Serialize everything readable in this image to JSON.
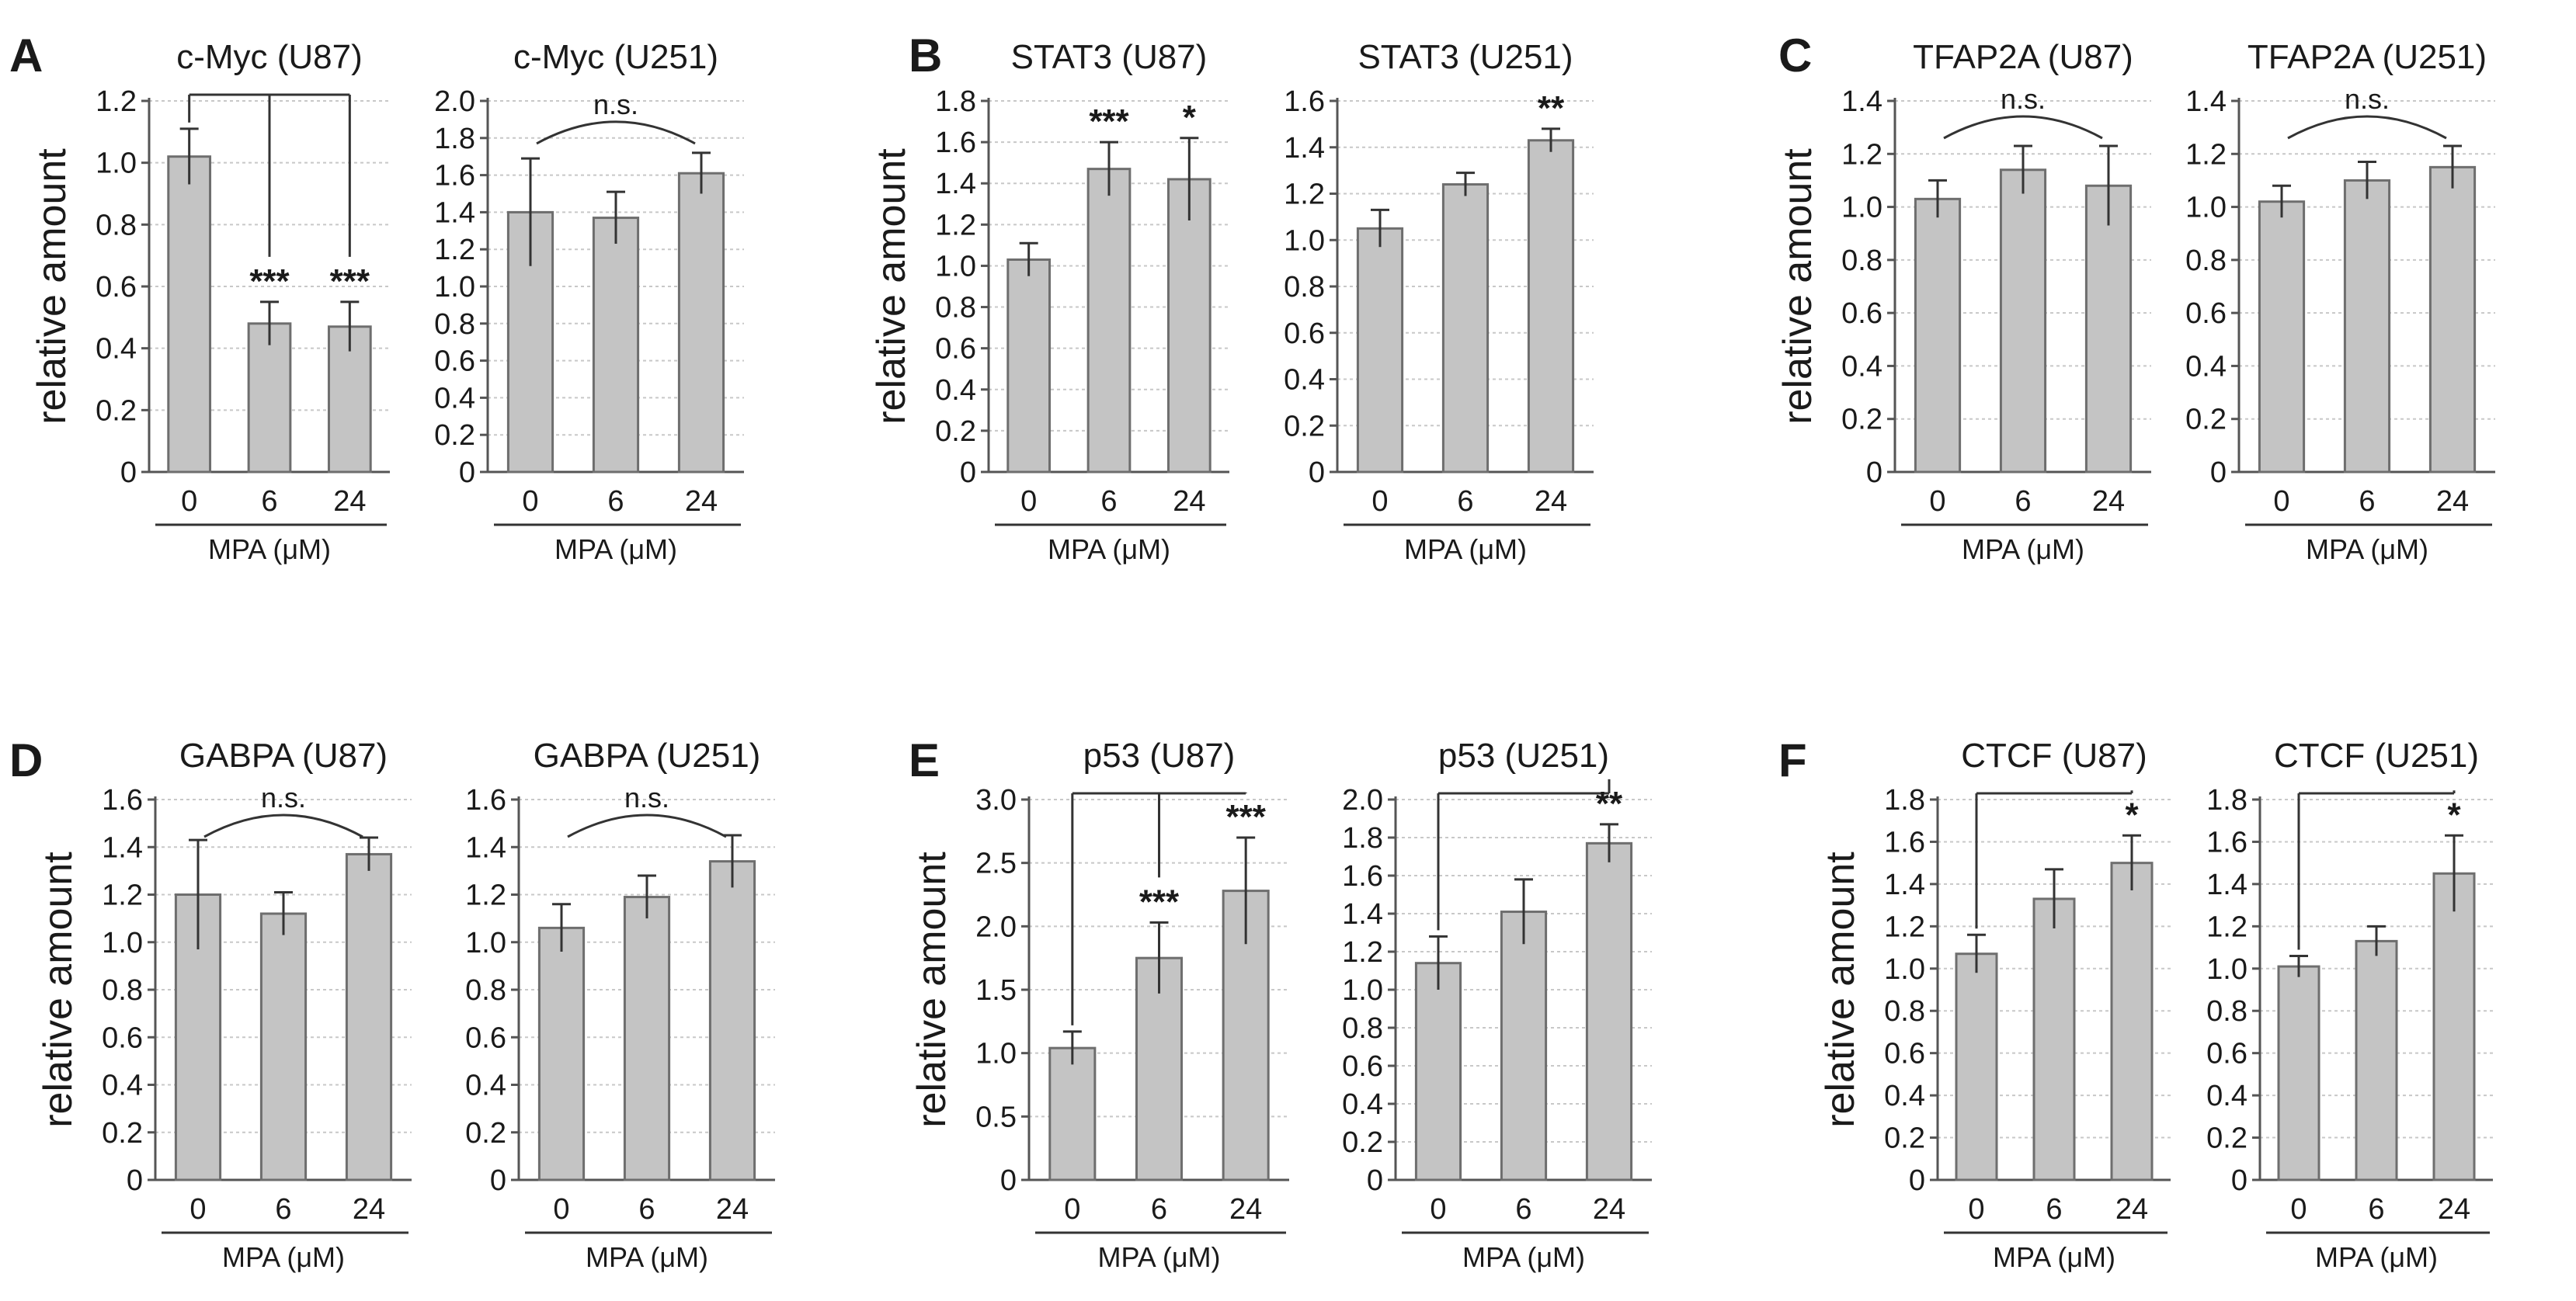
{
  "panel_letters": [
    "A",
    "B",
    "C",
    "D",
    "E",
    "F"
  ],
  "chart_data": [
    {
      "type": "bar",
      "panel": "A",
      "title": "c-Myc (U87)",
      "categories": [
        "0",
        "6",
        "24"
      ],
      "values": [
        1.02,
        0.48,
        0.47
      ],
      "errors": [
        0.09,
        0.07,
        0.08
      ],
      "ylim": [
        0,
        1.2
      ],
      "yticks": [
        "0",
        "0.2",
        "0.4",
        "0.6",
        "0.8",
        "1.0",
        "1.2"
      ],
      "ylabel": "relative amount",
      "xlabel": "MPA (μM)",
      "significance": [
        "",
        "***",
        "***"
      ],
      "bracket": {
        "style": "from_control",
        "targets": [
          1,
          2
        ],
        "label": ""
      }
    },
    {
      "type": "bar",
      "panel": "A",
      "title": "c-Myc (U251)",
      "categories": [
        "0",
        "6",
        "24"
      ],
      "values": [
        1.4,
        1.37,
        1.61
      ],
      "errors": [
        0.29,
        0.14,
        0.11
      ],
      "ylim": [
        0,
        2.0
      ],
      "yticks": [
        "0",
        "0.2",
        "0.4",
        "0.6",
        "0.8",
        "1.0",
        "1.2",
        "1.4",
        "1.6",
        "1.8",
        "2.0"
      ],
      "ylabel": "",
      "xlabel": "MPA (μM)",
      "significance": [
        "",
        "",
        ""
      ],
      "bracket": {
        "style": "arc",
        "label": "n.s."
      }
    },
    {
      "type": "bar",
      "panel": "B",
      "title": "STAT3 (U87)",
      "categories": [
        "0",
        "6",
        "24"
      ],
      "values": [
        1.03,
        1.47,
        1.42
      ],
      "errors": [
        0.08,
        0.13,
        0.2
      ],
      "ylim": [
        0,
        1.8
      ],
      "yticks": [
        "0",
        "0.2",
        "0.4",
        "0.6",
        "0.8",
        "1.0",
        "1.2",
        "1.4",
        "1.6",
        "1.8"
      ],
      "ylabel": "relative amount",
      "xlabel": "MPA (μM)",
      "significance": [
        "",
        "***",
        "*"
      ]
    },
    {
      "type": "bar",
      "panel": "B",
      "title": "STAT3 (U251)",
      "categories": [
        "0",
        "6",
        "24"
      ],
      "values": [
        1.05,
        1.24,
        1.43
      ],
      "errors": [
        0.08,
        0.05,
        0.05
      ],
      "ylim": [
        0,
        1.6
      ],
      "yticks": [
        "0",
        "0.2",
        "0.4",
        "0.6",
        "0.8",
        "1.0",
        "1.2",
        "1.4",
        "1.6"
      ],
      "ylabel": "",
      "xlabel": "MPA (μM)",
      "significance": [
        "",
        "",
        "**"
      ]
    },
    {
      "type": "bar",
      "panel": "C",
      "title": "TFAP2A (U87)",
      "categories": [
        "0",
        "6",
        "24"
      ],
      "values": [
        1.03,
        1.14,
        1.08
      ],
      "errors": [
        0.07,
        0.09,
        0.15
      ],
      "ylim": [
        0,
        1.4
      ],
      "yticks": [
        "0",
        "0.2",
        "0.4",
        "0.6",
        "0.8",
        "1.0",
        "1.2",
        "1.4"
      ],
      "ylabel": "relative amount",
      "xlabel": "MPA (μM)",
      "significance": [
        "",
        "",
        ""
      ],
      "bracket": {
        "style": "arc",
        "label": "n.s."
      }
    },
    {
      "type": "bar",
      "panel": "C",
      "title": "TFAP2A (U251)",
      "categories": [
        "0",
        "6",
        "24"
      ],
      "values": [
        1.02,
        1.1,
        1.15
      ],
      "errors": [
        0.06,
        0.07,
        0.08
      ],
      "ylim": [
        0,
        1.4
      ],
      "yticks": [
        "0",
        "0.2",
        "0.4",
        "0.6",
        "0.8",
        "1.0",
        "1.2",
        "1.4"
      ],
      "ylabel": "",
      "xlabel": "MPA (μM)",
      "significance": [
        "",
        "",
        ""
      ],
      "bracket": {
        "style": "arc",
        "label": "n.s."
      }
    },
    {
      "type": "bar",
      "panel": "D",
      "title": "GABPA (U87)",
      "categories": [
        "0",
        "6",
        "24"
      ],
      "values": [
        1.2,
        1.12,
        1.37
      ],
      "errors": [
        0.23,
        0.09,
        0.07
      ],
      "ylim": [
        0,
        1.6
      ],
      "yticks": [
        "0",
        "0.2",
        "0.4",
        "0.6",
        "0.8",
        "1.0",
        "1.2",
        "1.4",
        "1.6"
      ],
      "ylabel": "relative amount",
      "xlabel": "MPA (μM)",
      "significance": [
        "",
        "",
        ""
      ],
      "bracket": {
        "style": "arc",
        "label": "n.s."
      }
    },
    {
      "type": "bar",
      "panel": "D",
      "title": "GABPA (U251)",
      "categories": [
        "0",
        "6",
        "24"
      ],
      "values": [
        1.06,
        1.19,
        1.34
      ],
      "errors": [
        0.1,
        0.09,
        0.11
      ],
      "ylim": [
        0,
        1.6
      ],
      "yticks": [
        "0",
        "0.2",
        "0.4",
        "0.6",
        "0.8",
        "1.0",
        "1.2",
        "1.4",
        "1.6"
      ],
      "ylabel": "",
      "xlabel": "MPA (μM)",
      "significance": [
        "",
        "",
        ""
      ],
      "bracket": {
        "style": "arc",
        "label": "n.s."
      }
    },
    {
      "type": "bar",
      "panel": "E",
      "title": "p53 (U87)",
      "categories": [
        "0",
        "6",
        "24"
      ],
      "values": [
        1.04,
        1.75,
        2.28
      ],
      "errors": [
        0.13,
        0.28,
        0.42
      ],
      "ylim": [
        0,
        3.0
      ],
      "yticks": [
        "0",
        "0.5",
        "1.0",
        "1.5",
        "2.0",
        "2.5",
        "3.0"
      ],
      "ylabel": "relative amount",
      "xlabel": "MPA (μM)",
      "significance": [
        "",
        "***",
        "***"
      ],
      "bracket": {
        "style": "from_control",
        "targets": [
          1,
          2
        ],
        "label": ""
      }
    },
    {
      "type": "bar",
      "panel": "E",
      "title": "p53 (U251)",
      "categories": [
        "0",
        "6",
        "24"
      ],
      "values": [
        1.14,
        1.41,
        1.77
      ],
      "errors": [
        0.14,
        0.17,
        0.1
      ],
      "ylim": [
        0,
        2.0
      ],
      "yticks": [
        "0",
        "0.2",
        "0.4",
        "0.6",
        "0.8",
        "1.0",
        "1.2",
        "1.4",
        "1.6",
        "1.8",
        "2.0"
      ],
      "ylabel": "",
      "xlabel": "MPA (μM)",
      "significance": [
        "",
        "",
        "**"
      ],
      "bracket": {
        "style": "from_control",
        "targets": [
          2
        ],
        "label": ""
      }
    },
    {
      "type": "bar",
      "panel": "F",
      "title": "CTCF (U87)",
      "categories": [
        "0",
        "6",
        "24"
      ],
      "values": [
        1.07,
        1.33,
        1.5
      ],
      "errors": [
        0.09,
        0.14,
        0.13
      ],
      "ylim": [
        0,
        1.8
      ],
      "yticks": [
        "0",
        "0.2",
        "0.4",
        "0.6",
        "0.8",
        "1.0",
        "1.2",
        "1.4",
        "1.6",
        "1.8"
      ],
      "ylabel": "relative amount",
      "xlabel": "MPA (μM)",
      "significance": [
        "",
        "",
        "*"
      ],
      "bracket": {
        "style": "from_control",
        "targets": [
          2
        ],
        "label": ""
      }
    },
    {
      "type": "bar",
      "panel": "F",
      "title": "CTCF (U251)",
      "categories": [
        "0",
        "6",
        "24"
      ],
      "values": [
        1.01,
        1.13,
        1.45
      ],
      "errors": [
        0.05,
        0.07,
        0.18
      ],
      "ylim": [
        0,
        1.8
      ],
      "yticks": [
        "0",
        "0.2",
        "0.4",
        "0.6",
        "0.8",
        "1.0",
        "1.2",
        "1.4",
        "1.6",
        "1.8"
      ],
      "ylabel": "",
      "xlabel": "MPA (μM)",
      "significance": [
        "",
        "",
        "*"
      ],
      "bracket": {
        "style": "from_control",
        "targets": [
          2
        ],
        "label": ""
      }
    }
  ],
  "colors": {
    "bar_fill": "#c4c4c4",
    "bar_stroke": "#6e6e6e",
    "axis": "#555555",
    "grid": "#c8c8c8",
    "text": "#1a1a1a"
  }
}
